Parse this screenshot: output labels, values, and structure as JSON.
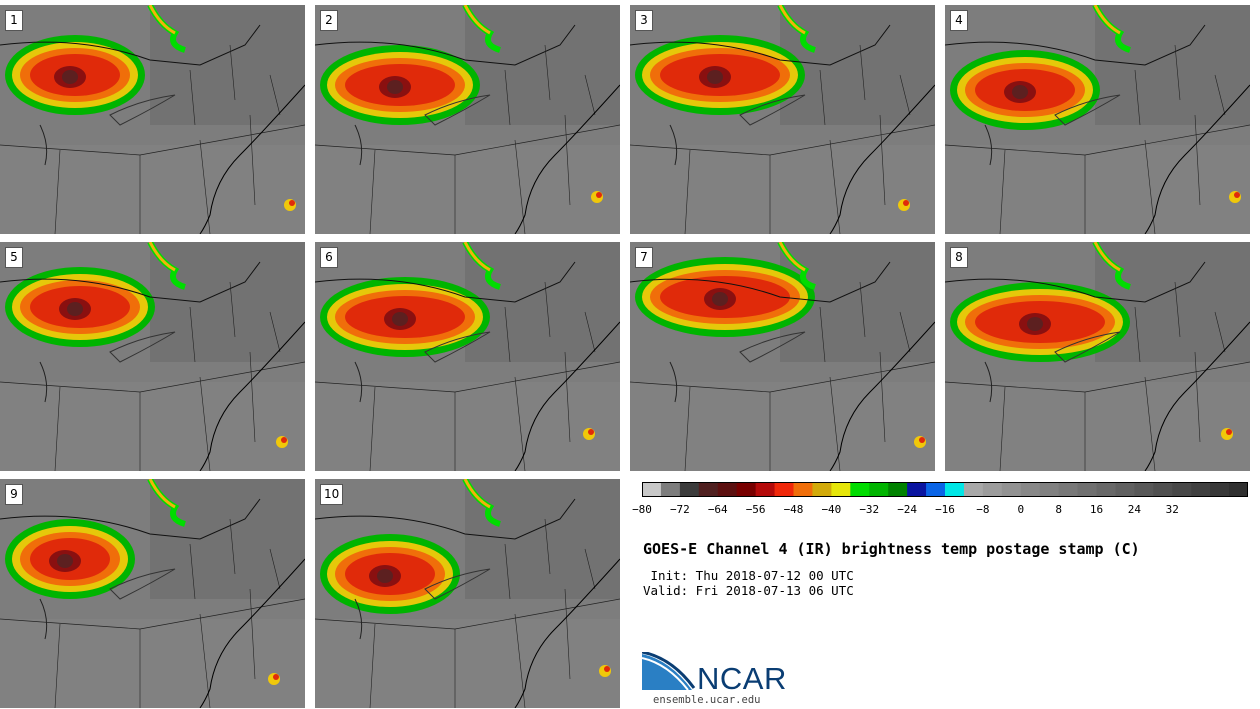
{
  "panels": [
    {
      "label": "1"
    },
    {
      "label": "2"
    },
    {
      "label": "3"
    },
    {
      "label": "4"
    },
    {
      "label": "5"
    },
    {
      "label": "6"
    },
    {
      "label": "7"
    },
    {
      "label": "8"
    },
    {
      "label": "9"
    },
    {
      "label": "10"
    }
  ],
  "colorbar": {
    "colors": [
      "#c8c8c8",
      "#7d7d7d",
      "#3c3c3c",
      "#502020",
      "#5c1010",
      "#780000",
      "#b40a0a",
      "#f0280a",
      "#f06e0a",
      "#d2aa0a",
      "#e6e60a",
      "#00dc00",
      "#00b400",
      "#008200",
      "#0a14a0",
      "#0a64e6",
      "#00e6e6",
      "#a8a8a8",
      "#9c9c9c",
      "#929292",
      "#888888",
      "#808080",
      "#787878",
      "#707070",
      "#686868",
      "#606060",
      "#585858",
      "#505050",
      "#484848",
      "#404040",
      "#383838",
      "#303030"
    ],
    "ticks": [
      "−80",
      "−72",
      "−64",
      "−56",
      "−48",
      "−40",
      "−32",
      "−24",
      "−16",
      "−8",
      "0",
      "8",
      "16",
      "24",
      "32"
    ]
  },
  "title": "GOES-E Channel 4 (IR) brightness temp postage stamp (C)",
  "init": " Init: Thu 2018-07-12 00 UTC",
  "valid": "Valid: Fri 2018-07-13 06 UTC",
  "logo": {
    "text": "NCAR",
    "url": "ensemble.ucar.edu"
  }
}
